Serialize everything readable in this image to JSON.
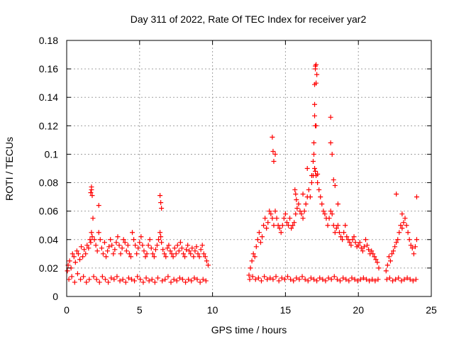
{
  "chart_data": {
    "type": "scatter",
    "title": "Day 311 of 2022, Rate Of TEC Index for receiver yar2",
    "xlabel": "GPS time / hours",
    "ylabel": "ROTI / TECUs",
    "xlim": [
      0,
      25
    ],
    "ylim": [
      0,
      0.18
    ],
    "xticks": [
      0,
      5,
      10,
      15,
      20,
      25
    ],
    "yticks": [
      0,
      0.02,
      0.04,
      0.06,
      0.08,
      0.1,
      0.12,
      0.14,
      0.16,
      0.18
    ],
    "xtick_labels": [
      "0",
      "5",
      "10",
      "15",
      "20",
      "25"
    ],
    "ytick_labels": [
      "0",
      "0.02",
      "0.04",
      "0.06",
      "0.08",
      "0.1",
      "0.12",
      "0.14",
      "0.16",
      "0.18"
    ],
    "grid": true,
    "marker": "+",
    "color": "#ff0000",
    "series": [
      {
        "x": [
          0.05,
          0.1,
          0.2,
          0.3,
          0.4,
          0.5,
          0.6,
          0.7,
          0.8,
          0.9,
          1.0,
          1.1,
          1.2,
          1.3,
          1.4,
          1.5,
          1.6,
          1.65,
          1.7,
          1.75,
          1.8,
          1.9,
          2.0,
          2.1,
          2.2,
          2.3,
          2.4,
          2.5,
          2.6,
          2.7,
          2.8,
          2.9,
          3.0,
          3.1,
          3.2,
          3.3,
          3.4,
          3.5,
          3.6,
          3.7,
          3.8,
          3.9,
          4.0,
          4.1,
          4.2,
          4.3,
          4.4,
          4.5,
          4.6,
          4.7,
          4.8,
          4.9,
          5.0,
          5.1,
          5.2,
          5.3,
          5.4,
          5.5,
          5.6,
          5.7,
          5.8,
          5.9,
          6.0,
          6.1,
          6.2,
          6.3,
          6.4,
          6.45,
          6.5,
          6.6,
          6.7,
          6.8,
          6.9,
          7.0,
          7.1,
          7.2,
          7.3,
          7.4,
          7.5,
          7.6,
          7.7,
          7.8,
          7.9,
          8.0,
          8.1,
          8.2,
          8.3,
          8.4,
          8.5,
          8.6,
          8.7,
          8.8,
          8.9,
          9.0,
          9.1,
          9.2,
          9.3,
          9.4,
          9.5,
          9.6,
          9.7,
          0.15,
          0.35,
          0.55,
          0.75,
          0.95,
          1.15,
          1.35,
          1.55,
          1.85,
          2.05,
          2.25,
          2.45,
          2.65,
          2.85,
          3.05,
          3.25,
          3.45,
          3.65,
          3.85,
          4.05,
          4.25,
          4.45,
          4.65,
          4.85,
          5.05,
          5.25,
          5.45,
          5.65,
          5.85,
          6.05,
          6.25,
          6.55,
          6.75,
          6.95,
          7.15,
          7.35,
          7.55,
          7.75,
          7.95,
          8.15,
          8.35,
          8.55,
          8.75,
          8.95,
          9.15,
          9.35,
          9.55,
          12.5,
          12.6,
          12.7,
          12.8,
          12.9,
          13.0,
          13.1,
          13.2,
          13.3,
          13.4,
          13.5,
          13.6,
          13.7,
          13.8,
          13.9,
          14.0,
          14.1,
          14.2,
          14.3,
          14.4,
          14.5,
          14.6,
          14.7,
          14.8,
          14.9,
          15.0,
          15.1,
          15.2,
          15.3,
          15.4,
          15.5,
          15.6,
          15.7,
          15.8,
          15.9,
          16.0,
          16.1,
          16.2,
          16.3,
          16.4,
          16.5,
          16.6,
          16.7,
          16.8,
          16.9,
          17.0,
          17.05,
          17.1,
          17.2,
          17.3,
          17.4,
          17.5,
          17.6,
          17.7,
          17.8,
          17.9,
          18.0,
          18.1,
          18.2,
          18.3,
          18.4,
          18.5,
          18.6,
          18.7,
          18.8,
          18.9,
          19.0,
          19.1,
          19.2,
          19.3,
          19.4,
          19.5,
          19.6,
          19.7,
          19.8,
          19.9,
          20.0,
          20.1,
          20.2,
          20.3,
          20.4,
          20.5,
          20.6,
          20.7,
          20.8,
          20.9,
          21.0,
          21.1,
          21.2,
          21.3,
          21.4,
          12.55,
          12.75,
          12.95,
          13.15,
          13.35,
          13.55,
          13.75,
          13.95,
          14.15,
          14.35,
          14.55,
          14.75,
          14.95,
          15.15,
          15.35,
          15.55,
          15.75,
          15.95,
          16.15,
          16.35,
          16.55,
          16.75,
          16.95,
          17.15,
          17.35,
          17.55,
          17.75,
          17.95,
          18.15,
          18.35,
          18.55,
          18.75,
          18.95,
          19.15,
          19.35,
          19.55,
          19.75,
          19.95,
          20.15,
          20.35,
          20.55,
          20.75,
          20.95,
          21.15,
          21.35,
          21.9,
          22.0,
          22.1,
          22.2,
          22.3,
          22.4,
          22.5,
          22.6,
          22.7,
          22.8,
          22.9,
          23.0,
          23.1,
          23.2,
          23.3,
          23.4,
          23.5,
          23.6,
          23.7,
          23.8,
          23.9,
          24.0,
          21.95,
          22.15,
          22.35,
          22.55,
          22.75,
          22.95,
          23.15,
          23.35,
          23.55,
          23.75,
          23.95,
          1.65,
          1.7,
          1.7,
          1.75,
          2.2,
          6.4,
          6.45,
          6.5,
          14.1,
          14.15,
          14.2,
          14.3,
          15.65,
          15.7,
          15.75,
          16.2,
          16.5,
          16.8,
          16.9,
          16.95,
          17.0,
          17.0,
          17.05,
          17.05,
          17.1,
          17.1,
          17.15,
          17.0,
          17.05,
          17.1,
          16.95,
          17.2,
          18.1,
          18.1,
          18.2,
          18.3,
          18.4,
          18.6,
          24.0,
          22.6,
          23.0
        ],
        "y": [
          0.018,
          0.022,
          0.025,
          0.02,
          0.03,
          0.028,
          0.024,
          0.032,
          0.03,
          0.026,
          0.035,
          0.028,
          0.033,
          0.03,
          0.036,
          0.034,
          0.04,
          0.038,
          0.045,
          0.042,
          0.055,
          0.04,
          0.036,
          0.032,
          0.045,
          0.04,
          0.034,
          0.03,
          0.038,
          0.028,
          0.032,
          0.035,
          0.04,
          0.036,
          0.03,
          0.033,
          0.038,
          0.042,
          0.036,
          0.03,
          0.034,
          0.04,
          0.038,
          0.032,
          0.036,
          0.03,
          0.028,
          0.045,
          0.04,
          0.036,
          0.03,
          0.034,
          0.038,
          0.042,
          0.036,
          0.032,
          0.028,
          0.03,
          0.036,
          0.04,
          0.034,
          0.03,
          0.028,
          0.033,
          0.036,
          0.04,
          0.045,
          0.042,
          0.038,
          0.033,
          0.03,
          0.028,
          0.034,
          0.036,
          0.032,
          0.03,
          0.028,
          0.034,
          0.03,
          0.036,
          0.032,
          0.038,
          0.034,
          0.03,
          0.028,
          0.033,
          0.036,
          0.032,
          0.03,
          0.034,
          0.028,
          0.032,
          0.035,
          0.03,
          0.028,
          0.033,
          0.036,
          0.03,
          0.028,
          0.025,
          0.022,
          0.012,
          0.014,
          0.01,
          0.016,
          0.012,
          0.014,
          0.01,
          0.012,
          0.014,
          0.012,
          0.01,
          0.014,
          0.012,
          0.01,
          0.013,
          0.012,
          0.014,
          0.011,
          0.012,
          0.01,
          0.013,
          0.012,
          0.011,
          0.014,
          0.012,
          0.01,
          0.013,
          0.011,
          0.012,
          0.01,
          0.013,
          0.011,
          0.012,
          0.014,
          0.01,
          0.012,
          0.011,
          0.013,
          0.012,
          0.01,
          0.012,
          0.011,
          0.013,
          0.012,
          0.01,
          0.012,
          0.011,
          0.015,
          0.02,
          0.025,
          0.03,
          0.028,
          0.035,
          0.04,
          0.045,
          0.038,
          0.042,
          0.05,
          0.055,
          0.048,
          0.052,
          0.06,
          0.058,
          0.055,
          0.05,
          0.06,
          0.055,
          0.05,
          0.048,
          0.045,
          0.05,
          0.055,
          0.058,
          0.052,
          0.05,
          0.055,
          0.048,
          0.05,
          0.052,
          0.058,
          0.062,
          0.065,
          0.06,
          0.058,
          0.055,
          0.06,
          0.065,
          0.07,
          0.075,
          0.07,
          0.08,
          0.085,
          0.09,
          0.088,
          0.085,
          0.08,
          0.075,
          0.07,
          0.065,
          0.06,
          0.058,
          0.055,
          0.05,
          0.055,
          0.06,
          0.058,
          0.05,
          0.045,
          0.048,
          0.05,
          0.045,
          0.042,
          0.04,
          0.045,
          0.05,
          0.042,
          0.04,
          0.038,
          0.036,
          0.04,
          0.042,
          0.038,
          0.035,
          0.036,
          0.038,
          0.034,
          0.032,
          0.035,
          0.04,
          0.036,
          0.033,
          0.03,
          0.032,
          0.03,
          0.028,
          0.026,
          0.024,
          0.02,
          0.012,
          0.014,
          0.012,
          0.013,
          0.011,
          0.014,
          0.012,
          0.013,
          0.012,
          0.014,
          0.011,
          0.013,
          0.012,
          0.014,
          0.012,
          0.011,
          0.013,
          0.012,
          0.014,
          0.012,
          0.011,
          0.013,
          0.012,
          0.011,
          0.013,
          0.012,
          0.011,
          0.013,
          0.012,
          0.014,
          0.012,
          0.011,
          0.013,
          0.012,
          0.011,
          0.013,
          0.012,
          0.011,
          0.012,
          0.013,
          0.012,
          0.011,
          0.012,
          0.011,
          0.012,
          0.018,
          0.022,
          0.028,
          0.025,
          0.03,
          0.032,
          0.035,
          0.038,
          0.04,
          0.045,
          0.05,
          0.048,
          0.052,
          0.055,
          0.05,
          0.045,
          0.04,
          0.036,
          0.034,
          0.03,
          0.035,
          0.04,
          0.012,
          0.013,
          0.011,
          0.012,
          0.013,
          0.011,
          0.012,
          0.013,
          0.012,
          0.011,
          0.012,
          0.073,
          0.077,
          0.075,
          0.071,
          0.064,
          0.071,
          0.066,
          0.062,
          0.112,
          0.102,
          0.095,
          0.1,
          0.075,
          0.072,
          0.068,
          0.072,
          0.09,
          0.085,
          0.095,
          0.108,
          0.127,
          0.149,
          0.16,
          0.162,
          0.163,
          0.15,
          0.156,
          0.135,
          0.12,
          0.12,
          0.1,
          0.086,
          0.126,
          0.108,
          0.1,
          0.082,
          0.078,
          0.065,
          0.07,
          0.072,
          0.058
        ]
      }
    ]
  }
}
